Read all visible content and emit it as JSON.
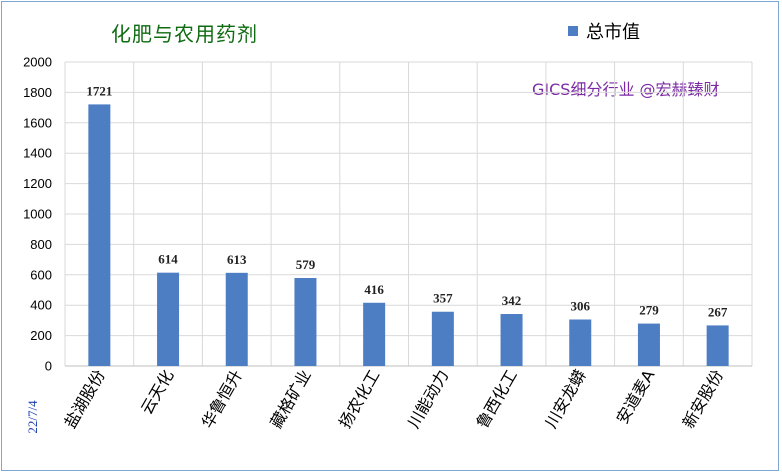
{
  "title": "化肥与农用药剂",
  "legend": {
    "label": "总市值",
    "color": "#4d7ec4"
  },
  "annotation": "GICS细分行业 @宏赫臻财",
  "date": "22/7/4",
  "chart_data": {
    "type": "bar",
    "title": "化肥与农用药剂",
    "categories": [
      "盐湖股份",
      "云天化",
      "华鲁恒升",
      "藏格矿业",
      "扬农化工",
      "川能动力",
      "鲁西化工",
      "川安龙蟒",
      "安道麦A",
      "新安股份"
    ],
    "series": [
      {
        "name": "总市值",
        "values": [
          1721,
          614,
          613,
          579,
          416,
          357,
          342,
          306,
          279,
          267
        ],
        "color": "#4d7ec4"
      }
    ],
    "yticks": [
      "0",
      "200",
      "400",
      "600",
      "800",
      "1000",
      "1200",
      "1400",
      "1600",
      "1800",
      "2000"
    ],
    "ylim": [
      0,
      2000
    ],
    "grid": true,
    "legend_position": "top-right"
  }
}
